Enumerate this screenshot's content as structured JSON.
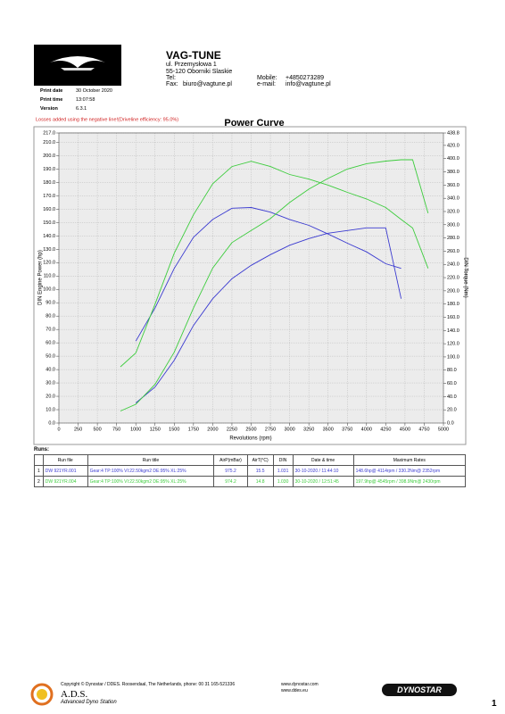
{
  "header": {
    "company": "VAG-TUNE",
    "address1": "ul. Przemysłowa 1",
    "address2": "55-120 Oborniki Slaskie",
    "tel_label": "Tel:",
    "fax_label": "Fax:",
    "fax_value": "biuro@vagtune.pl",
    "mobile_label": "Mobile:",
    "mobile_value": "+4850273289",
    "email_label": "e-mail:",
    "email_value": "info@vagtune.pl"
  },
  "print_info": [
    [
      "Print date",
      "30 October 2020"
    ],
    [
      "Print time",
      "13:07:58"
    ],
    [
      "Version",
      "6.3.1"
    ]
  ],
  "chart_data": {
    "type": "line",
    "title": "Power Curve",
    "note": "Losses added using the negative line!(Driveline efficiency: 95.0%)",
    "x_label": "Revolutions (rpm)",
    "y_label": "DIN Engine Power (hp)",
    "y2_label": "DIN Torque (Nm)",
    "x": [
      800,
      1000,
      1250,
      1500,
      1750,
      2000,
      2250,
      2500,
      2750,
      3000,
      3250,
      3500,
      3750,
      4000,
      4250,
      4450,
      4600,
      4800
    ],
    "xlim": [
      0,
      5000
    ],
    "xticks": [
      0,
      250,
      500,
      750,
      1000,
      1250,
      1500,
      1750,
      2000,
      2250,
      2500,
      2750,
      3000,
      3250,
      3500,
      3750,
      4000,
      4250,
      4500,
      4750,
      5000
    ],
    "ylim": [
      0,
      217
    ],
    "yticks": [
      {
        "value": 0,
        "label": "0.0"
      },
      {
        "value": 10,
        "label": "10.0"
      },
      {
        "value": 20,
        "label": "20.0"
      },
      {
        "value": 30,
        "label": "30.0"
      },
      {
        "value": 40,
        "label": "40.0"
      },
      {
        "value": 50,
        "label": "50.0"
      },
      {
        "value": 60,
        "label": "60.0"
      },
      {
        "value": 70,
        "label": "70.0"
      },
      {
        "value": 80,
        "label": "80.0"
      },
      {
        "value": 90,
        "label": "90.0"
      },
      {
        "value": 100,
        "label": "100.0"
      },
      {
        "value": 110,
        "label": "110.0"
      },
      {
        "value": 120,
        "label": "120.0"
      },
      {
        "value": 130,
        "label": "130.0"
      },
      {
        "value": 140,
        "label": "140.0"
      },
      {
        "value": 150,
        "label": "150.0"
      },
      {
        "value": 160,
        "label": "160.0"
      },
      {
        "value": 170,
        "label": "170.0"
      },
      {
        "value": 180,
        "label": "180.0"
      },
      {
        "value": 190,
        "label": "190.0"
      },
      {
        "value": 200,
        "label": "200.0"
      },
      {
        "value": 210,
        "label": "210.0"
      },
      {
        "value": 217,
        "label": "217.0"
      }
    ],
    "y2lim": [
      0,
      438.8
    ],
    "y2ticks": [
      {
        "value": 0,
        "label": "0.0"
      },
      {
        "value": 20,
        "label": "20.0"
      },
      {
        "value": 40,
        "label": "40.0"
      },
      {
        "value": 60,
        "label": "60.0"
      },
      {
        "value": 80,
        "label": "80.0"
      },
      {
        "value": 100,
        "label": "100.0"
      },
      {
        "value": 120,
        "label": "120.0"
      },
      {
        "value": 140,
        "label": "140.0"
      },
      {
        "value": 160,
        "label": "160.0"
      },
      {
        "value": 180,
        "label": "180.0"
      },
      {
        "value": 200,
        "label": "200.0"
      },
      {
        "value": 220,
        "label": "220.0"
      },
      {
        "value": 240,
        "label": "240.0"
      },
      {
        "value": 260,
        "label": "260.0"
      },
      {
        "value": 280,
        "label": "280.0"
      },
      {
        "value": 300,
        "label": "300.0"
      },
      {
        "value": 320,
        "label": "320.0"
      },
      {
        "value": 340,
        "label": "340.0"
      },
      {
        "value": 360,
        "label": "360.0"
      },
      {
        "value": 380,
        "label": "380.0"
      },
      {
        "value": 400,
        "label": "400.0"
      },
      {
        "value": 420,
        "label": "420.0"
      },
      {
        "value": 438.8,
        "label": "438.8"
      }
    ],
    "grid": true,
    "series": [
      {
        "color": "#3a3ad0",
        "values": [
          null,
          15,
          27,
          47,
          73,
          93,
          108,
          118,
          126,
          133,
          138,
          142,
          144,
          146,
          146,
          93,
          null,
          null
        ]
      },
      {
        "color": "#3a3ad0",
        "axis": "y2",
        "values": [
          null,
          124,
          174,
          234,
          281,
          308,
          325,
          326,
          319,
          308,
          299,
          286,
          272,
          259,
          241,
          234,
          null,
          null
        ]
      },
      {
        "color": "#3ccc3c",
        "values": [
          9,
          14,
          29,
          53,
          86,
          116,
          135,
          144,
          153,
          165,
          175,
          183,
          190,
          194,
          196,
          197,
          197,
          157
        ]
      },
      {
        "color": "#3ccc3c",
        "axis": "y2",
        "values": [
          85,
          106,
          180,
          257,
          315,
          362,
          388,
          396,
          388,
          376,
          369,
          360,
          349,
          339,
          326,
          308,
          295,
          234
        ]
      }
    ]
  },
  "runs": {
    "title": "Runs:",
    "columns": [
      "",
      "Run file",
      "Run title",
      "AirP(mBar)",
      "AirT(°C)",
      "DIN",
      "Date & time",
      "Maximum Rates"
    ],
    "rows": [
      [
        "1",
        "DW 921YR.001",
        "Gear:4 TP:100% VI:22.50kgm2 DE:95% XL:25%",
        "975.2",
        "15.5",
        "1.031",
        "30-10-2020 / 11:44:10",
        "148.6hp@ 4114rpm / 330.2Nm@ 2352rpm"
      ],
      [
        "2",
        "DW 921YR.004",
        "Gear:4 TP:100% VI:22.50kgm2 DE:95% XL:25%",
        "974.2",
        "14.8",
        "1.030",
        "30-10-2020 / 12:51:45",
        "197.9hp@ 4545rpm / 398.9Nm@ 2430rpm"
      ]
    ]
  },
  "footer": {
    "copyright": "Copyright © Dynostar / DDES. Roosendaal, The Netherlands, phone: 00 31 165-521336",
    "web1": "www.dynostar.com",
    "web2": "www.ddes.eu",
    "ads": "A.D.S.",
    "ads_full": "Advanced Dyno Station",
    "brand": "DYNOSTAR",
    "page": "1"
  }
}
